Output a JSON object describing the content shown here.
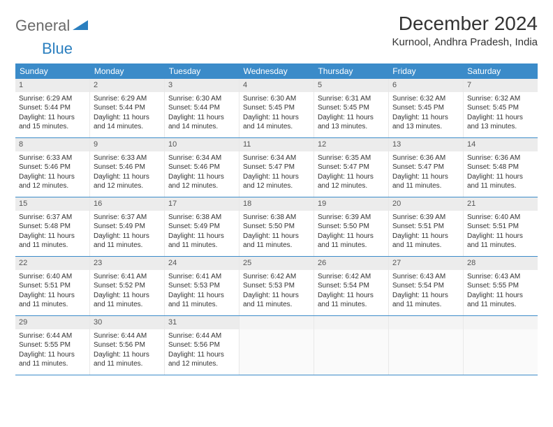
{
  "logo": {
    "text1": "General",
    "text2": "Blue"
  },
  "title": "December 2024",
  "location": "Kurnool, Andhra Pradesh, India",
  "colors": {
    "header_bg": "#3b8bc9",
    "header_text": "#ffffff",
    "daynum_bg": "#ececec",
    "border": "#3b8bc9",
    "body_text": "#333333",
    "logo_gray": "#6a6a6a",
    "logo_blue": "#2b7fbf"
  },
  "typography": {
    "title_fontsize": 28,
    "location_fontsize": 15,
    "weekday_fontsize": 12,
    "daynum_fontsize": 11,
    "body_fontsize": 10
  },
  "weekdays": [
    "Sunday",
    "Monday",
    "Tuesday",
    "Wednesday",
    "Thursday",
    "Friday",
    "Saturday"
  ],
  "weeks": [
    [
      {
        "n": "1",
        "sr": "6:29 AM",
        "ss": "5:44 PM",
        "dl": "11 hours and 15 minutes."
      },
      {
        "n": "2",
        "sr": "6:29 AM",
        "ss": "5:44 PM",
        "dl": "11 hours and 14 minutes."
      },
      {
        "n": "3",
        "sr": "6:30 AM",
        "ss": "5:44 PM",
        "dl": "11 hours and 14 minutes."
      },
      {
        "n": "4",
        "sr": "6:30 AM",
        "ss": "5:45 PM",
        "dl": "11 hours and 14 minutes."
      },
      {
        "n": "5",
        "sr": "6:31 AM",
        "ss": "5:45 PM",
        "dl": "11 hours and 13 minutes."
      },
      {
        "n": "6",
        "sr": "6:32 AM",
        "ss": "5:45 PM",
        "dl": "11 hours and 13 minutes."
      },
      {
        "n": "7",
        "sr": "6:32 AM",
        "ss": "5:45 PM",
        "dl": "11 hours and 13 minutes."
      }
    ],
    [
      {
        "n": "8",
        "sr": "6:33 AM",
        "ss": "5:46 PM",
        "dl": "11 hours and 12 minutes."
      },
      {
        "n": "9",
        "sr": "6:33 AM",
        "ss": "5:46 PM",
        "dl": "11 hours and 12 minutes."
      },
      {
        "n": "10",
        "sr": "6:34 AM",
        "ss": "5:46 PM",
        "dl": "11 hours and 12 minutes."
      },
      {
        "n": "11",
        "sr": "6:34 AM",
        "ss": "5:47 PM",
        "dl": "11 hours and 12 minutes."
      },
      {
        "n": "12",
        "sr": "6:35 AM",
        "ss": "5:47 PM",
        "dl": "11 hours and 12 minutes."
      },
      {
        "n": "13",
        "sr": "6:36 AM",
        "ss": "5:47 PM",
        "dl": "11 hours and 11 minutes."
      },
      {
        "n": "14",
        "sr": "6:36 AM",
        "ss": "5:48 PM",
        "dl": "11 hours and 11 minutes."
      }
    ],
    [
      {
        "n": "15",
        "sr": "6:37 AM",
        "ss": "5:48 PM",
        "dl": "11 hours and 11 minutes."
      },
      {
        "n": "16",
        "sr": "6:37 AM",
        "ss": "5:49 PM",
        "dl": "11 hours and 11 minutes."
      },
      {
        "n": "17",
        "sr": "6:38 AM",
        "ss": "5:49 PM",
        "dl": "11 hours and 11 minutes."
      },
      {
        "n": "18",
        "sr": "6:38 AM",
        "ss": "5:50 PM",
        "dl": "11 hours and 11 minutes."
      },
      {
        "n": "19",
        "sr": "6:39 AM",
        "ss": "5:50 PM",
        "dl": "11 hours and 11 minutes."
      },
      {
        "n": "20",
        "sr": "6:39 AM",
        "ss": "5:51 PM",
        "dl": "11 hours and 11 minutes."
      },
      {
        "n": "21",
        "sr": "6:40 AM",
        "ss": "5:51 PM",
        "dl": "11 hours and 11 minutes."
      }
    ],
    [
      {
        "n": "22",
        "sr": "6:40 AM",
        "ss": "5:51 PM",
        "dl": "11 hours and 11 minutes."
      },
      {
        "n": "23",
        "sr": "6:41 AM",
        "ss": "5:52 PM",
        "dl": "11 hours and 11 minutes."
      },
      {
        "n": "24",
        "sr": "6:41 AM",
        "ss": "5:53 PM",
        "dl": "11 hours and 11 minutes."
      },
      {
        "n": "25",
        "sr": "6:42 AM",
        "ss": "5:53 PM",
        "dl": "11 hours and 11 minutes."
      },
      {
        "n": "26",
        "sr": "6:42 AM",
        "ss": "5:54 PM",
        "dl": "11 hours and 11 minutes."
      },
      {
        "n": "27",
        "sr": "6:43 AM",
        "ss": "5:54 PM",
        "dl": "11 hours and 11 minutes."
      },
      {
        "n": "28",
        "sr": "6:43 AM",
        "ss": "5:55 PM",
        "dl": "11 hours and 11 minutes."
      }
    ],
    [
      {
        "n": "29",
        "sr": "6:44 AM",
        "ss": "5:55 PM",
        "dl": "11 hours and 11 minutes."
      },
      {
        "n": "30",
        "sr": "6:44 AM",
        "ss": "5:56 PM",
        "dl": "11 hours and 11 minutes."
      },
      {
        "n": "31",
        "sr": "6:44 AM",
        "ss": "5:56 PM",
        "dl": "11 hours and 12 minutes."
      },
      null,
      null,
      null,
      null
    ]
  ],
  "labels": {
    "sunrise": "Sunrise:",
    "sunset": "Sunset:",
    "daylight": "Daylight:"
  }
}
